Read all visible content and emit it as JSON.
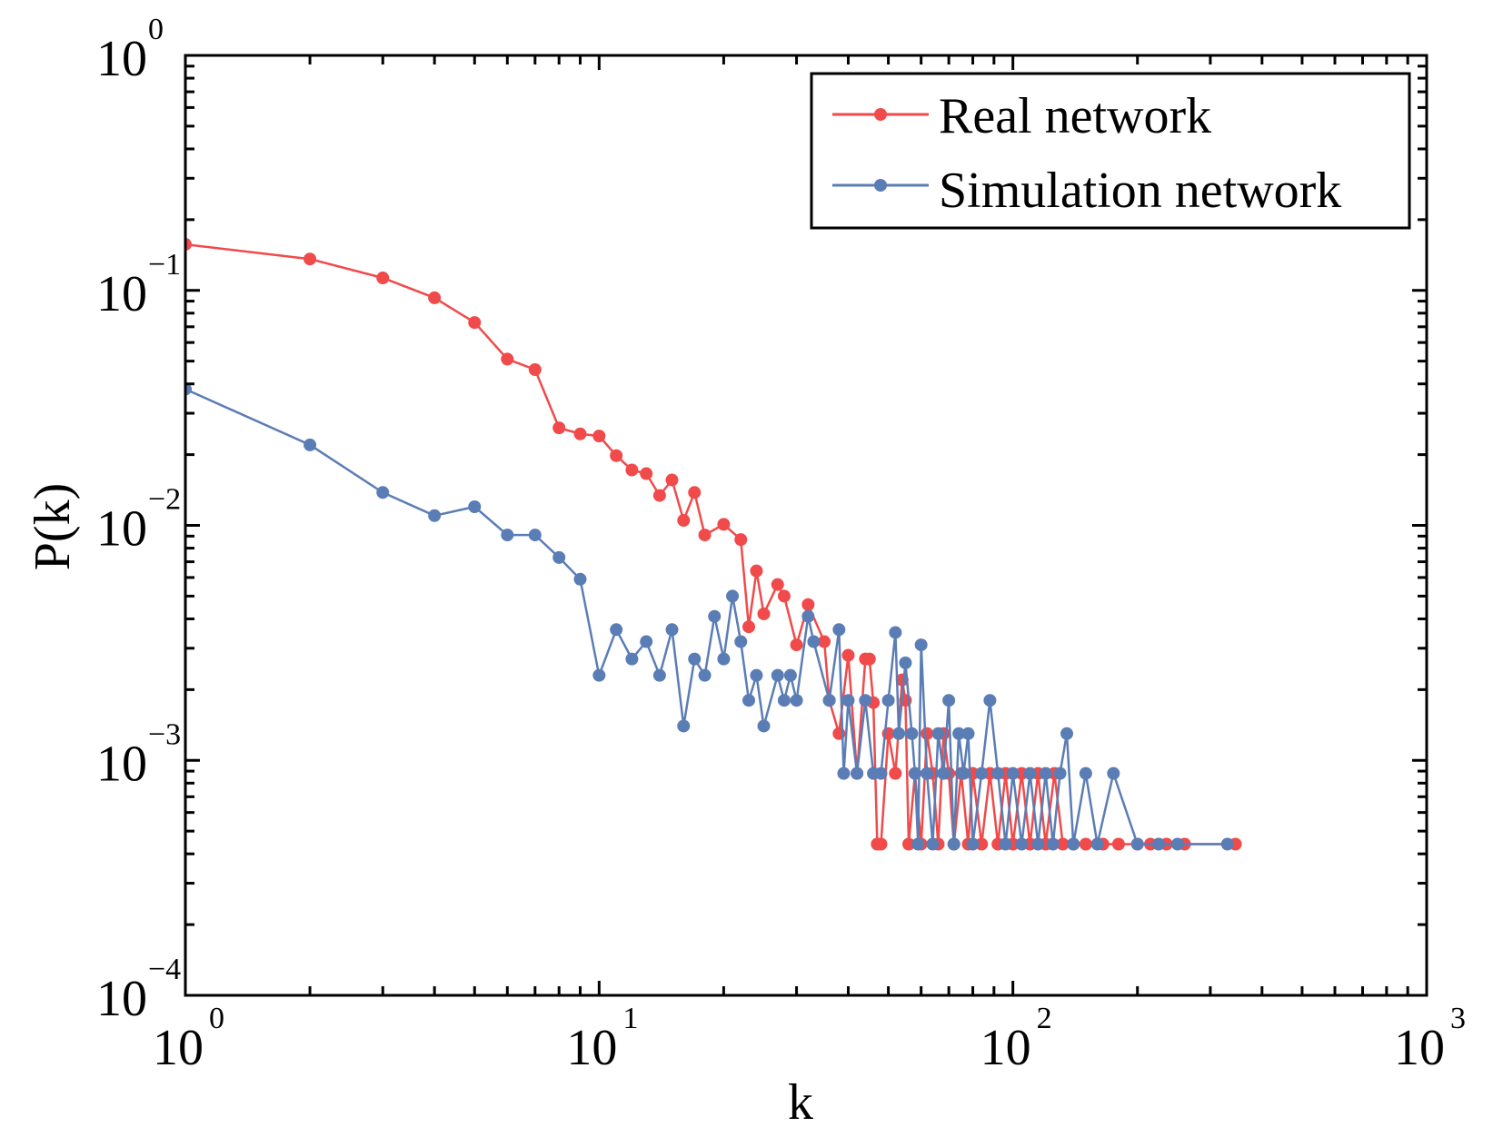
{
  "chart_data": {
    "type": "line",
    "title": "",
    "xlabel": "k",
    "ylabel": "P(k)",
    "xscale": "log",
    "yscale": "log",
    "xlim": [
      1,
      1000
    ],
    "ylim": [
      0.0001,
      1
    ],
    "x_ticks": [
      {
        "base": "10",
        "exp": "0"
      },
      {
        "base": "10",
        "exp": "1"
      },
      {
        "base": "10",
        "exp": "2"
      },
      {
        "base": "10",
        "exp": "3"
      }
    ],
    "y_ticks": [
      {
        "base": "10",
        "exp": "0"
      },
      {
        "base": "10",
        "exp": "-1"
      },
      {
        "base": "10",
        "exp": "-2"
      },
      {
        "base": "10",
        "exp": "-3"
      },
      {
        "base": "10",
        "exp": "-4"
      }
    ],
    "grid": false,
    "legend_position": "top-right",
    "series": [
      {
        "name": "Real network",
        "color": "#f04a4a",
        "x": [
          1,
          2,
          3,
          4,
          5,
          6,
          7,
          8,
          9,
          10,
          11,
          12,
          13,
          14,
          15,
          16,
          17,
          18,
          20,
          22,
          23,
          24,
          25,
          27,
          28,
          30,
          32,
          35,
          36,
          38,
          40,
          42,
          44,
          45,
          46,
          47,
          48,
          50,
          52,
          54,
          55,
          56,
          58,
          60,
          62,
          64,
          66,
          68,
          70,
          72,
          75,
          78,
          80,
          84,
          88,
          92,
          96,
          100,
          105,
          110,
          115,
          120,
          126,
          132,
          140,
          150,
          165,
          180,
          200,
          215,
          235,
          260,
          345
        ],
        "y": [
          0.157,
          0.136,
          0.113,
          0.093,
          0.073,
          0.051,
          0.046,
          0.026,
          0.0245,
          0.024,
          0.0198,
          0.0172,
          0.0166,
          0.0134,
          0.0156,
          0.0105,
          0.0138,
          0.0091,
          0.0101,
          0.0087,
          0.0037,
          0.0064,
          0.0042,
          0.0056,
          0.005,
          0.0031,
          0.0046,
          0.0032,
          0.0018,
          0.0013,
          0.0028,
          0.00088,
          0.0027,
          0.0027,
          0.00176,
          0.00044,
          0.00044,
          0.0013,
          0.00088,
          0.0022,
          0.0018,
          0.00044,
          0.00088,
          0.00044,
          0.0013,
          0.00088,
          0.00044,
          0.0013,
          0.00088,
          0.00044,
          0.00088,
          0.00044,
          0.00088,
          0.00044,
          0.00088,
          0.00044,
          0.00088,
          0.00044,
          0.00088,
          0.00044,
          0.00088,
          0.00044,
          0.00088,
          0.00044,
          0.00044,
          0.00044,
          0.00044,
          0.00044,
          0.00044,
          0.00044,
          0.00044,
          0.00044,
          0.00044
        ]
      },
      {
        "name": "Simulation network",
        "color": "#5b7db5",
        "x": [
          1,
          2,
          3,
          4,
          5,
          6,
          7,
          8,
          9,
          10,
          11,
          12,
          13,
          14,
          15,
          16,
          17,
          18,
          19,
          20,
          21,
          22,
          23,
          24,
          25,
          27,
          28,
          29,
          30,
          32,
          33,
          36,
          38,
          39,
          40,
          42,
          44,
          46,
          48,
          50,
          52,
          53,
          55,
          57,
          58,
          59,
          60,
          62,
          64,
          66,
          68,
          70,
          72,
          74,
          76,
          78,
          80,
          84,
          88,
          92,
          96,
          100,
          105,
          110,
          115,
          120,
          125,
          130,
          135,
          140,
          150,
          160,
          175,
          200,
          225,
          250,
          330
        ],
        "y": [
          0.038,
          0.022,
          0.0138,
          0.011,
          0.012,
          0.0091,
          0.0091,
          0.0073,
          0.0059,
          0.0023,
          0.0036,
          0.0027,
          0.0032,
          0.0023,
          0.0036,
          0.0014,
          0.0027,
          0.0023,
          0.0041,
          0.0027,
          0.005,
          0.0032,
          0.0018,
          0.0023,
          0.0014,
          0.0023,
          0.0018,
          0.0023,
          0.0018,
          0.0041,
          0.0032,
          0.0018,
          0.0036,
          0.00088,
          0.0018,
          0.00088,
          0.0018,
          0.00088,
          0.00088,
          0.0018,
          0.0035,
          0.0013,
          0.0026,
          0.0013,
          0.00088,
          0.00044,
          0.0031,
          0.00088,
          0.00044,
          0.0013,
          0.00088,
          0.0018,
          0.00044,
          0.0013,
          0.00088,
          0.0013,
          0.00044,
          0.00088,
          0.0018,
          0.00088,
          0.00044,
          0.00088,
          0.00044,
          0.00088,
          0.00044,
          0.00088,
          0.00044,
          0.00088,
          0.0013,
          0.00044,
          0.00088,
          0.00044,
          0.00088,
          0.00044,
          0.00044,
          0.00044,
          0.00044
        ]
      }
    ]
  }
}
